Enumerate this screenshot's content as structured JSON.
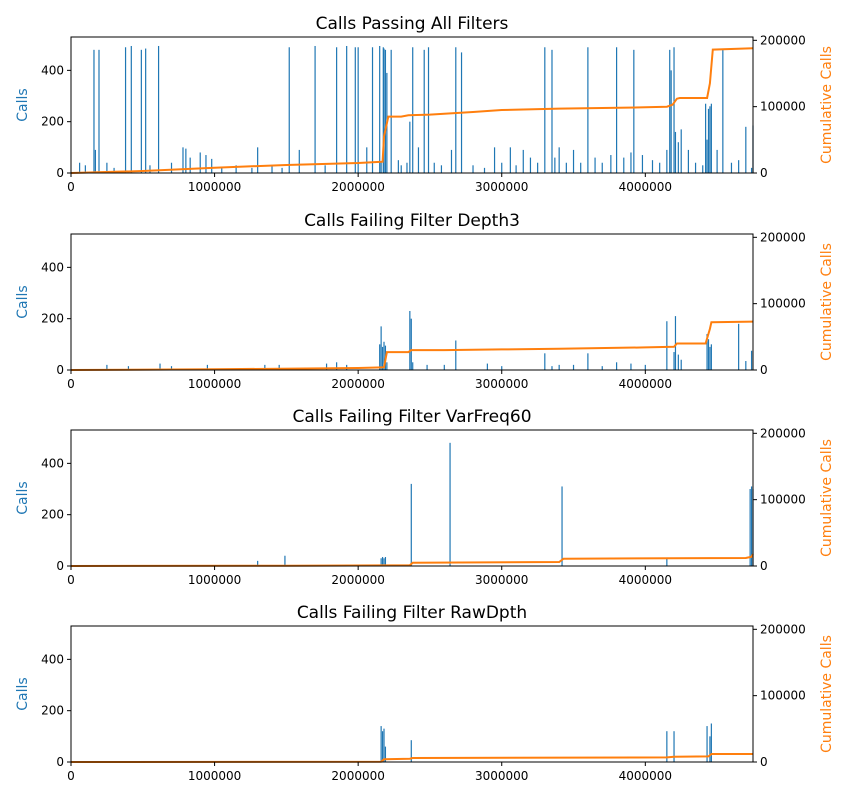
{
  "colors": {
    "calls": "#1f77b4",
    "cumulative": "#ff7f0e",
    "axes": "#000000",
    "background": "#ffffff"
  },
  "chart_data": [
    {
      "type": "line",
      "title": "Calls Passing All Filters",
      "xlabel": "",
      "ylabel": "Calls",
      "y2label": "Cumulative Calls",
      "xlim": [
        0,
        4750000
      ],
      "ylim": [
        0,
        530
      ],
      "y2lim": [
        0,
        205000
      ],
      "xticks": [
        0,
        1000000,
        2000000,
        3000000,
        4000000
      ],
      "yticks": [
        0,
        200,
        400
      ],
      "y2ticks": [
        0,
        100000,
        200000
      ],
      "series": [
        {
          "axis": "left",
          "color": "#1f77b4",
          "style": "bars",
          "x": [
            60000,
            100000,
            160000,
            170000,
            195000,
            250000,
            300000,
            380000,
            420000,
            490000,
            520000,
            550000,
            610000,
            700000,
            780000,
            800000,
            830000,
            900000,
            940000,
            980000,
            1050000,
            1150000,
            1260000,
            1300000,
            1400000,
            1470000,
            1520000,
            1590000,
            1700000,
            1770000,
            1850000,
            1920000,
            1980000,
            2000000,
            2060000,
            2100000,
            2150000,
            2160000,
            2175000,
            2180000,
            2190000,
            2200000,
            2230000,
            2280000,
            2300000,
            2340000,
            2360000,
            2380000,
            2420000,
            2460000,
            2490000,
            2530000,
            2580000,
            2650000,
            2680000,
            2720000,
            2800000,
            2880000,
            2950000,
            3000000,
            3060000,
            3100000,
            3150000,
            3200000,
            3250000,
            3300000,
            3350000,
            3370000,
            3400000,
            3450000,
            3500000,
            3550000,
            3600000,
            3650000,
            3700000,
            3760000,
            3800000,
            3850000,
            3900000,
            3920000,
            3980000,
            4050000,
            4100000,
            4150000,
            4170000,
            4180000,
            4200000,
            4210000,
            4230000,
            4250000,
            4300000,
            4350000,
            4400000,
            4420000,
            4430000,
            4440000,
            4450000,
            4460000,
            4500000,
            4540000,
            4600000,
            4650000,
            4700000,
            4740000,
            4750000
          ],
          "values": [
            40,
            30,
            480,
            90,
            480,
            40,
            20,
            490,
            495,
            480,
            485,
            30,
            495,
            40,
            100,
            95,
            60,
            80,
            70,
            55,
            20,
            30,
            20,
            100,
            30,
            20,
            490,
            90,
            495,
            30,
            490,
            495,
            490,
            490,
            100,
            490,
            495,
            45,
            490,
            485,
            480,
            390,
            480,
            50,
            30,
            40,
            200,
            490,
            100,
            480,
            490,
            40,
            30,
            90,
            490,
            470,
            30,
            20,
            100,
            40,
            100,
            30,
            90,
            60,
            40,
            490,
            480,
            60,
            100,
            40,
            90,
            40,
            490,
            60,
            40,
            70,
            490,
            60,
            80,
            480,
            70,
            50,
            40,
            90,
            480,
            400,
            490,
            160,
            120,
            170,
            90,
            40,
            30,
            270,
            130,
            250,
            260,
            270,
            90,
            480,
            40,
            50,
            180,
            20,
            185
          ],
          "name": ""
        },
        {
          "axis": "right",
          "color": "#ff7f0e",
          "style": "line",
          "x": [
            0,
            500000,
            1000000,
            1500000,
            2000000,
            2170000,
            2180000,
            2200000,
            2210000,
            2300000,
            2350000,
            2500000,
            2800000,
            3000000,
            3400000,
            3700000,
            4000000,
            4150000,
            4190000,
            4220000,
            4240000,
            4430000,
            4450000,
            4470000,
            4750000
          ],
          "values": [
            0,
            3000,
            8000,
            12000,
            15000,
            17000,
            55000,
            75000,
            85000,
            85000,
            87000,
            88000,
            92000,
            95000,
            97000,
            98000,
            99000,
            100000,
            103000,
            112000,
            113000,
            113000,
            135000,
            186000,
            188000
          ],
          "name": ""
        }
      ]
    },
    {
      "type": "line",
      "title": "Calls Failing Filter Depth3",
      "xlabel": "",
      "ylabel": "Calls",
      "y2label": "Cumulative Calls",
      "xlim": [
        0,
        4750000
      ],
      "ylim": [
        0,
        530
      ],
      "y2lim": [
        0,
        205000
      ],
      "xticks": [
        0,
        1000000,
        2000000,
        3000000,
        4000000
      ],
      "yticks": [
        0,
        200,
        400
      ],
      "y2ticks": [
        0,
        100000,
        200000
      ],
      "series": [
        {
          "axis": "left",
          "color": "#1f77b4",
          "style": "bars",
          "x": [
            250000,
            400000,
            620000,
            700000,
            950000,
            1350000,
            1450000,
            1780000,
            1850000,
            1920000,
            2150000,
            2160000,
            2170000,
            2180000,
            2190000,
            2200000,
            2360000,
            2370000,
            2380000,
            2480000,
            2600000,
            2680000,
            2900000,
            3000000,
            3300000,
            3350000,
            3400000,
            3500000,
            3600000,
            3700000,
            3800000,
            3900000,
            4000000,
            4150000,
            4200000,
            4210000,
            4230000,
            4250000,
            4430000,
            4440000,
            4450000,
            4460000,
            4650000,
            4700000,
            4740000
          ],
          "values": [
            20,
            15,
            25,
            15,
            20,
            20,
            20,
            25,
            30,
            20,
            100,
            170,
            90,
            110,
            95,
            30,
            230,
            200,
            30,
            20,
            20,
            115,
            25,
            15,
            65,
            15,
            20,
            20,
            65,
            15,
            30,
            25,
            20,
            190,
            70,
            210,
            60,
            40,
            140,
            120,
            90,
            100,
            180,
            35,
            75
          ],
          "name": ""
        },
        {
          "axis": "right",
          "color": "#ff7f0e",
          "style": "line",
          "x": [
            0,
            1000000,
            2000000,
            2180000,
            2200000,
            2350000,
            2370000,
            2600000,
            3000000,
            3400000,
            4000000,
            4200000,
            4220000,
            4420000,
            4450000,
            4460000,
            4750000
          ],
          "values": [
            0,
            1000,
            3000,
            4000,
            27000,
            27000,
            30000,
            30000,
            31000,
            32000,
            34000,
            35000,
            40000,
            40000,
            62000,
            72000,
            73000
          ],
          "name": ""
        }
      ]
    },
    {
      "type": "line",
      "title": "Calls Failing Filter VarFreq60",
      "xlabel": "",
      "ylabel": "Calls",
      "y2label": "Cumulative Calls",
      "xlim": [
        0,
        4750000
      ],
      "ylim": [
        0,
        530
      ],
      "y2lim": [
        0,
        205000
      ],
      "xticks": [
        0,
        1000000,
        2000000,
        3000000,
        4000000
      ],
      "yticks": [
        0,
        200,
        400
      ],
      "y2ticks": [
        0,
        100000,
        200000
      ],
      "series": [
        {
          "axis": "left",
          "color": "#1f77b4",
          "style": "bars",
          "x": [
            1300000,
            1490000,
            2160000,
            2170000,
            2180000,
            2190000,
            2370000,
            2640000,
            3420000,
            4150000,
            4730000,
            4740000,
            4750000
          ],
          "values": [
            20,
            40,
            30,
            35,
            30,
            35,
            320,
            480,
            310,
            30,
            300,
            310,
            300
          ],
          "name": ""
        },
        {
          "axis": "right",
          "color": "#ff7f0e",
          "style": "line",
          "x": [
            0,
            1500000,
            2360000,
            2380000,
            3400000,
            3430000,
            4700000,
            4740000,
            4750000
          ],
          "values": [
            0,
            500,
            1000,
            5000,
            6000,
            11000,
            12000,
            14000,
            18000
          ],
          "name": ""
        }
      ]
    },
    {
      "type": "line",
      "title": "Calls Failing Filter RawDpth",
      "xlabel": "",
      "ylabel": "Calls",
      "y2label": "Cumulative Calls",
      "xlim": [
        0,
        4750000
      ],
      "ylim": [
        0,
        530
      ],
      "y2lim": [
        0,
        205000
      ],
      "xticks": [
        0,
        1000000,
        2000000,
        3000000,
        4000000
      ],
      "yticks": [
        0,
        200,
        400
      ],
      "y2ticks": [
        0,
        100000,
        200000
      ],
      "series": [
        {
          "axis": "left",
          "color": "#1f77b4",
          "style": "bars",
          "x": [
            2160000,
            2170000,
            2180000,
            2190000,
            2370000,
            4150000,
            4200000,
            4430000,
            4450000,
            4460000
          ],
          "values": [
            140,
            120,
            130,
            60,
            85,
            120,
            120,
            140,
            100,
            150
          ],
          "name": ""
        },
        {
          "axis": "right",
          "color": "#ff7f0e",
          "style": "line",
          "x": [
            0,
            2160000,
            2180000,
            2360000,
            2380000,
            4150000,
            4200000,
            4440000,
            4460000,
            4750000
          ],
          "values": [
            0,
            500,
            4000,
            5000,
            6000,
            7000,
            8000,
            8500,
            12000,
            12000
          ],
          "name": ""
        }
      ]
    }
  ]
}
